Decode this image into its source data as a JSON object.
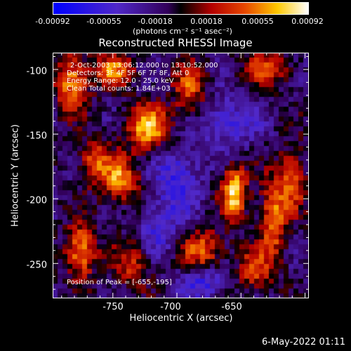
{
  "chart_data": {
    "type": "heatmap",
    "title": "Reconstructed RHESSI Image",
    "xlabel": "Heliocentric X (arcsec)",
    "ylabel": "Heliocentric Y (arcsec)",
    "xlim": [
      -797,
      -597
    ],
    "ylim": [
      -277,
      -87
    ],
    "xticks": [
      -750,
      -700,
      -650
    ],
    "yticks": [
      -100,
      -150,
      -200,
      -250
    ],
    "colorscale": "red-temperature",
    "colorbar": {
      "ticks": [
        "-0.00092",
        "-0.00055",
        "-0.00018",
        "0.00018",
        "0.00055",
        "0.00092"
      ],
      "range": [
        -0.00092,
        0.00092
      ],
      "unit": "(photons cm⁻² s⁻¹ asec⁻²)"
    },
    "annotations": [
      "2-Oct-2003 13:06:12.000 to 13:10:52.000",
      "Detectors: 3F 4F 5F 6F 7F 8F, Att 0",
      "Energy Range: 12.0 - 25.0 keV",
      "Clean     Total counts: 1.84E+03"
    ],
    "peak_label": "Position of Peak = [-655,-195]",
    "sources": [
      {
        "x": -655,
        "y": -195,
        "amp": 1.0,
        "sx": 7,
        "sy": 14
      },
      {
        "x": -722,
        "y": -145,
        "amp": 0.9,
        "sx": 12,
        "sy": 12
      },
      {
        "x": -775,
        "y": -240,
        "amp": 0.85,
        "sx": 8,
        "sy": 14
      },
      {
        "x": -745,
        "y": -185,
        "amp": 0.8,
        "sx": 10,
        "sy": 12
      },
      {
        "x": -782,
        "y": -110,
        "amp": 0.8,
        "sx": 9,
        "sy": 15
      },
      {
        "x": -750,
        "y": -100,
        "amp": 0.7,
        "sx": 11,
        "sy": 9
      },
      {
        "x": -625,
        "y": -215,
        "amp": 0.75,
        "sx": 7,
        "sy": 22
      },
      {
        "x": -610,
        "y": -185,
        "amp": 0.7,
        "sx": 7,
        "sy": 16
      },
      {
        "x": -680,
        "y": -240,
        "amp": 0.65,
        "sx": 12,
        "sy": 11
      },
      {
        "x": -690,
        "y": -115,
        "amp": 0.6,
        "sx": 9,
        "sy": 14
      },
      {
        "x": -765,
        "y": -170,
        "amp": 0.6,
        "sx": 8,
        "sy": 12
      },
      {
        "x": -630,
        "y": -100,
        "amp": 0.55,
        "sx": 13,
        "sy": 10
      },
      {
        "x": -700,
        "y": -185,
        "amp": -0.55,
        "sx": 12,
        "sy": 18
      },
      {
        "x": -680,
        "y": -265,
        "amp": -0.5,
        "sx": 14,
        "sy": 9
      },
      {
        "x": -660,
        "y": -140,
        "amp": -0.45,
        "sx": 16,
        "sy": 14
      },
      {
        "x": -735,
        "y": -250,
        "amp": 0.5,
        "sx": 10,
        "sy": 12
      },
      {
        "x": -640,
        "y": -255,
        "amp": 0.55,
        "sx": 9,
        "sy": 12
      },
      {
        "x": -715,
        "y": -225,
        "amp": -0.4,
        "sx": 10,
        "sy": 14
      }
    ]
  },
  "footer": {
    "date": "6-May-2022 01:11"
  }
}
